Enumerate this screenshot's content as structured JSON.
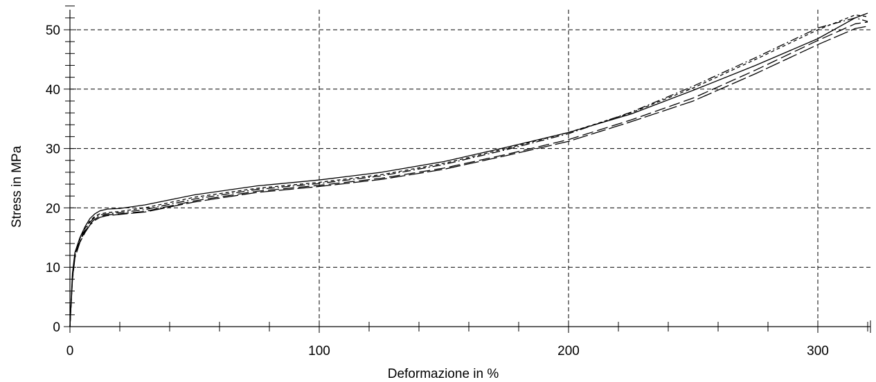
{
  "chart_data": {
    "type": "line",
    "title": "",
    "xlabel": "Deformazione in %",
    "ylabel": "Stress in MPa",
    "xlim": [
      0,
      322
    ],
    "ylim": [
      0,
      54
    ],
    "xticks": [
      0,
      100,
      200,
      300
    ],
    "xtick_labels": [
      "0",
      "100",
      "200",
      "300"
    ],
    "yticks": [
      0,
      10,
      20,
      30,
      40,
      50
    ],
    "ytick_labels": [
      "0",
      "10",
      "20",
      "30",
      "40",
      "50"
    ],
    "x_minor_step": 20,
    "y_minor_step": 2,
    "grid": true,
    "grid_style": "dashed",
    "legend": "none",
    "line_color": "#000000",
    "series": [
      {
        "dash": "solid",
        "x": [
          0,
          1,
          2,
          4,
          6,
          8,
          10,
          12,
          15,
          20,
          30,
          50,
          75,
          100,
          125,
          150,
          175,
          200,
          225,
          250,
          275,
          300,
          315,
          320
        ],
        "y": [
          0,
          9,
          12.5,
          15,
          16.8,
          18.2,
          19.0,
          19.5,
          19.8,
          19.9,
          20.5,
          22.2,
          23.7,
          24.7,
          26.0,
          27.8,
          30.2,
          32.7,
          35.8,
          39.8,
          44.0,
          48.5,
          52.0,
          52.8
        ]
      },
      {
        "dash": "short-dash",
        "x": [
          0,
          1,
          2,
          4,
          6,
          8,
          10,
          12,
          15,
          20,
          30,
          50,
          75,
          100,
          125,
          150,
          175,
          200,
          225,
          250,
          275,
          300,
          315,
          320
        ],
        "y": [
          0,
          8.5,
          12.2,
          14.8,
          16.5,
          17.8,
          18.6,
          19.0,
          19.2,
          19.4,
          20.0,
          21.8,
          23.3,
          24.3,
          25.6,
          27.5,
          30.0,
          32.7,
          36.0,
          40.2,
          45.0,
          50.0,
          52.5,
          52.2
        ]
      },
      {
        "dash": "dash-dot",
        "x": [
          0,
          1,
          2,
          4,
          6,
          8,
          10,
          12,
          15,
          20,
          30,
          50,
          75,
          100,
          125,
          150,
          175,
          200,
          225,
          250,
          275,
          300,
          315,
          320
        ],
        "y": [
          0,
          8.3,
          12.0,
          14.6,
          16.3,
          17.6,
          18.4,
          18.8,
          19.0,
          19.2,
          19.7,
          21.5,
          23.1,
          24.1,
          25.4,
          27.3,
          29.8,
          32.5,
          36.1,
          40.5,
          45.3,
          50.3,
          52.0,
          51.4
        ]
      },
      {
        "dash": "long-dash",
        "x": [
          0,
          1,
          2,
          4,
          6,
          8,
          10,
          12,
          15,
          20,
          30,
          50,
          75,
          100,
          125,
          150,
          175,
          200,
          225,
          250,
          275,
          300,
          315,
          320
        ],
        "y": [
          0,
          8.0,
          11.8,
          14.4,
          16.0,
          17.3,
          18.1,
          18.6,
          18.8,
          19.0,
          19.4,
          21.2,
          22.8,
          23.8,
          25.0,
          26.7,
          29.0,
          31.5,
          34.8,
          38.5,
          43.2,
          48.2,
          51.0,
          51.3
        ]
      },
      {
        "dash": "long-dash-2",
        "x": [
          0,
          1,
          2,
          4,
          6,
          8,
          10,
          12,
          15,
          20,
          30,
          50,
          75,
          100,
          125,
          150,
          175,
          200,
          225,
          250,
          275,
          300,
          315,
          320
        ],
        "y": [
          0,
          7.8,
          11.6,
          14.2,
          15.8,
          17.1,
          17.9,
          18.4,
          18.7,
          18.9,
          19.3,
          21.0,
          22.6,
          23.6,
          24.8,
          26.5,
          28.8,
          31.2,
          34.5,
          38.0,
          42.6,
          47.5,
          50.2,
          50.6
        ]
      }
    ]
  }
}
